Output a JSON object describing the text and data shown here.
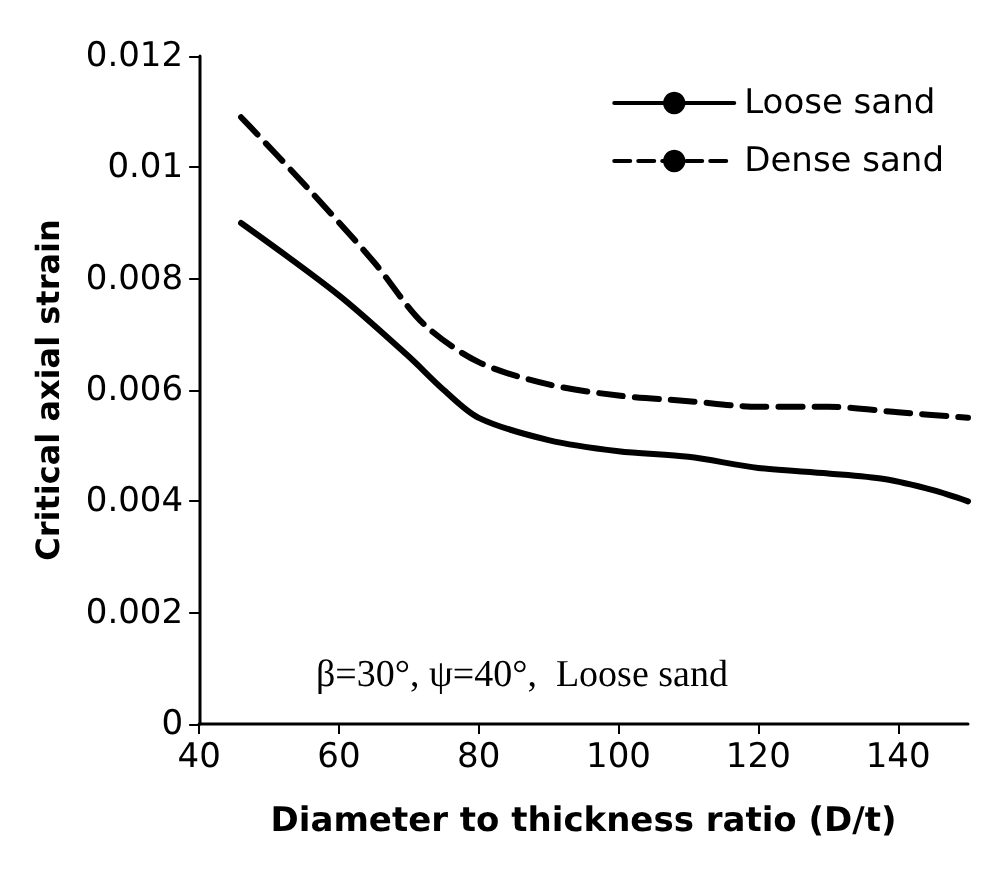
{
  "chart_data": {
    "type": "line",
    "xlabel": "Diameter to thickness ratio (D/t)",
    "ylabel": "Critical axial strain",
    "xlim": [
      40,
      150
    ],
    "xticks": [
      40,
      60,
      80,
      100,
      120,
      140
    ],
    "ylim": [
      0,
      0.012
    ],
    "yticks": [
      0,
      0.002,
      0.004,
      0.006,
      0.008,
      0.01,
      0.012
    ],
    "grid": false,
    "legend": "top right",
    "marker": "none",
    "series": [
      {
        "name": "Loose sand",
        "color": "#000000",
        "line_style": "solid",
        "x": [
          46,
          60,
          70,
          75,
          80,
          90,
          100,
          110,
          120,
          130,
          138,
          145,
          150
        ],
        "values": [
          0.009,
          0.0077,
          0.0066,
          0.006,
          0.0055,
          0.0051,
          0.0049,
          0.0048,
          0.0046,
          0.0045,
          0.0044,
          0.0042,
          0.004
        ]
      },
      {
        "name": "Dense sand",
        "color": "#000000",
        "line_style": "dashed",
        "x": [
          46,
          55,
          65,
          72,
          80,
          90,
          100,
          110,
          120,
          130,
          140,
          150
        ],
        "values": [
          0.0109,
          0.0097,
          0.0083,
          0.0072,
          0.0065,
          0.0061,
          0.0059,
          0.0058,
          0.0057,
          0.0057,
          0.0056,
          0.0055
        ]
      }
    ],
    "annotations": [
      "β=30°, ψ=40°,  Loose sand"
    ]
  }
}
